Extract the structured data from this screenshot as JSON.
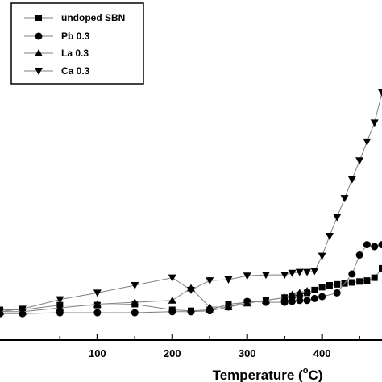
{
  "chart_data": {
    "type": "line",
    "xlabel": "Temperature (°C)",
    "xlabel_parts": {
      "main": "Temperature (",
      "sup": "o",
      "end": "C)"
    },
    "ylabel": "",
    "xlim": [
      -30,
      480
    ],
    "ylim": [
      0,
      360
    ],
    "xticks": [
      100,
      200,
      300,
      400
    ],
    "xtick_labels": [
      "100",
      "200",
      "300",
      "400"
    ],
    "grid": false,
    "legend_position": "top-left",
    "series": [
      {
        "name": "undoped SBN",
        "marker": "square",
        "x": [
          -30,
          0,
          50,
          100,
          150,
          200,
          225,
          250,
          275,
          300,
          325,
          350,
          360,
          370,
          380,
          390,
          400,
          410,
          420,
          430,
          440,
          450,
          460,
          470,
          480
        ],
        "y": [
          32,
          32,
          37,
          37,
          38,
          32,
          31,
          32,
          38,
          40,
          42,
          45,
          47,
          48,
          50,
          53,
          56,
          58,
          59,
          60,
          61,
          62,
          63,
          66,
          76
        ]
      },
      {
        "name": "Pb 0.3",
        "marker": "circle",
        "x": [
          -30,
          0,
          50,
          100,
          150,
          200,
          225,
          250,
          275,
          300,
          325,
          350,
          360,
          370,
          380,
          390,
          400,
          420,
          440,
          450,
          460,
          470,
          480
        ],
        "y": [
          28,
          28,
          29,
          29,
          29,
          30,
          30,
          31,
          35,
          41,
          40,
          40,
          41,
          42,
          42,
          44,
          46,
          50,
          70,
          90,
          101,
          99,
          101
        ]
      },
      {
        "name": "La 0.3",
        "marker": "triangle-up",
        "x": [
          -30,
          0,
          50,
          100,
          150,
          200,
          225,
          250,
          275,
          300,
          325,
          350,
          360,
          370,
          380
        ],
        "y": [
          30,
          30,
          34,
          38,
          40,
          42,
          55,
          35,
          35,
          39,
          42,
          45,
          48,
          50,
          52
        ]
      },
      {
        "name": "Ca 0.3",
        "marker": "triangle-down",
        "x": [
          -30,
          0,
          50,
          100,
          150,
          200,
          225,
          250,
          275,
          300,
          325,
          350,
          360,
          370,
          380,
          390,
          400,
          410,
          420,
          430,
          440,
          450,
          460,
          470,
          480
        ],
        "y": [
          30,
          33,
          43,
          50,
          58,
          66,
          53,
          63,
          64,
          68,
          69,
          69,
          71,
          72,
          72,
          73,
          89,
          110,
          130,
          150,
          170,
          190,
          210,
          230,
          262
        ]
      }
    ]
  },
  "legend": {
    "items": [
      {
        "label": "undoped SBN",
        "marker": "square"
      },
      {
        "label": "Pb 0.3",
        "marker": "circle"
      },
      {
        "label": "La 0.3",
        "marker": "triangle-up"
      },
      {
        "label": "Ca 0.3",
        "marker": "triangle-down"
      }
    ]
  },
  "colors": {
    "line": "#808080",
    "marker": "#000000",
    "axis": "#000000",
    "background": "#ffffff"
  }
}
